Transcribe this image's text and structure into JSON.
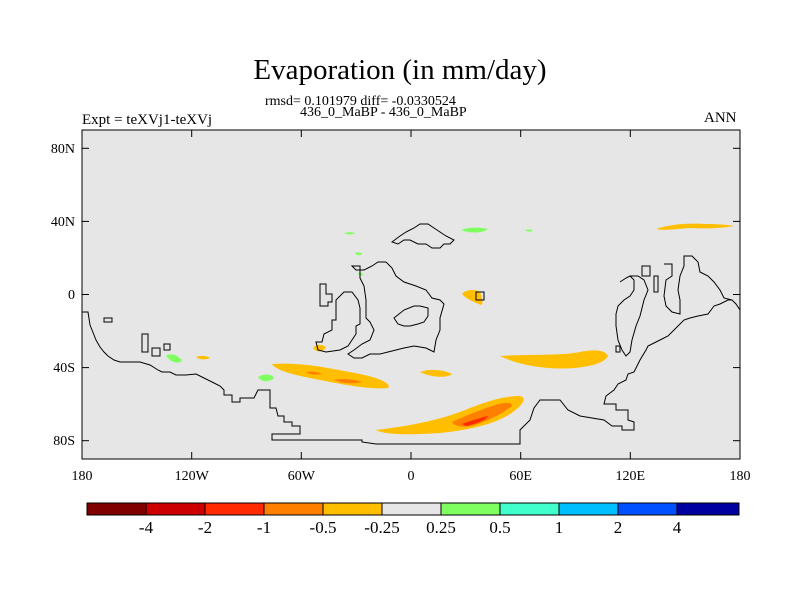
{
  "header": {
    "title": "Evaporation (in mm/day)",
    "stats": "rmsd= 0.101979 diff= -0.0330524",
    "case": "436_0_MaBP - 436_0_MaBP",
    "experiment": "Expt = teXVj1-teXVj",
    "season": "ANN"
  },
  "map": {
    "background_color": "#e6e6e6",
    "coastline_color": "#000000",
    "x_tick_labels": [
      "180",
      "120W",
      "60W",
      "0",
      "60E",
      "120E",
      "180"
    ],
    "y_tick_labels": [
      "80N",
      "40N",
      "0",
      "40S",
      "80S"
    ]
  },
  "colorbar": {
    "colors": [
      "#800000",
      "#cc0000",
      "#ff2a00",
      "#ff7f00",
      "#ffbf00",
      "#e6e6e6",
      "#80ff60",
      "#40ffcc",
      "#00bfff",
      "#0050ff",
      "#0000a0"
    ],
    "labels": [
      "-4",
      "-2",
      "-1",
      "-0.5",
      "-0.25",
      "0.25",
      "0.5",
      "1",
      "2",
      "4"
    ]
  }
}
